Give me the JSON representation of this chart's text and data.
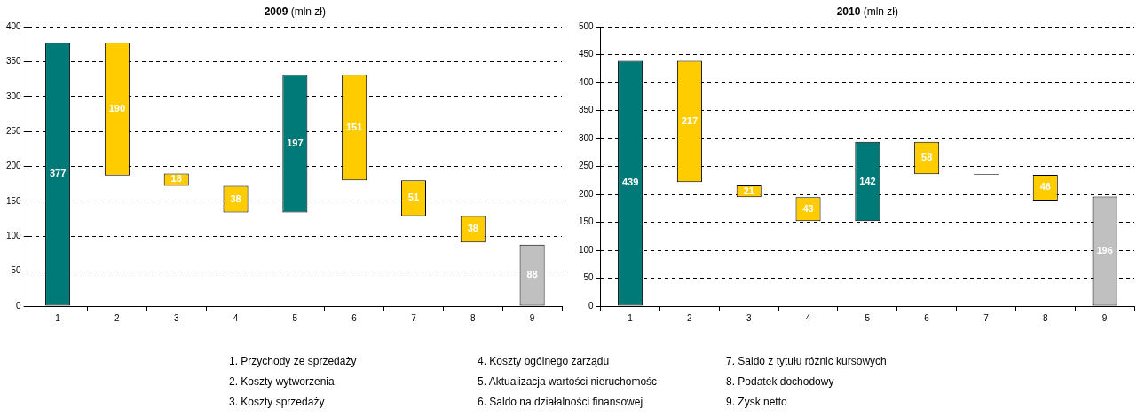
{
  "chart_data": [
    {
      "type": "bar",
      "title": "2009 (mln zł)",
      "categories": [
        "1",
        "2",
        "3",
        "4",
        "5",
        "6",
        "7",
        "8",
        "9"
      ],
      "values": [
        377,
        190,
        18,
        38,
        197,
        151,
        51,
        38,
        88
      ],
      "base": [
        0,
        187,
        172,
        134,
        134,
        180,
        129,
        91,
        0
      ],
      "colors": [
        "#007a78",
        "#ffcc00",
        "#ffcc00",
        "#ffcc00",
        "#007a78",
        "#ffcc00",
        "#ffcc00",
        "#ffcc00",
        "#c0c0c0"
      ],
      "ylim": [
        0,
        400
      ],
      "yticks": [
        0,
        50,
        100,
        150,
        200,
        250,
        300,
        350,
        400
      ],
      "grid": "y",
      "data_labels": true
    },
    {
      "type": "bar",
      "title": "2010 (mln zł)",
      "categories": [
        "1",
        "2",
        "3",
        "4",
        "5",
        "6",
        "7",
        "8",
        "9"
      ],
      "values": [
        439,
        217,
        21,
        43,
        142,
        58,
        1,
        46,
        196
      ],
      "base": [
        0,
        222,
        195,
        152,
        152,
        236,
        235,
        189,
        0
      ],
      "colors": [
        "#007a78",
        "#ffcc00",
        "#ffcc00",
        "#ffcc00",
        "#007a78",
        "#ffcc00",
        "#000000",
        "#ffcc00",
        "#c0c0c0"
      ],
      "value_labels": [
        "439",
        "217",
        "21",
        "43",
        "142",
        "58",
        null,
        "46",
        "196"
      ],
      "ylim": [
        0,
        500
      ],
      "yticks": [
        0,
        50,
        100,
        150,
        200,
        250,
        300,
        350,
        400,
        450,
        500
      ],
      "grid": "y"
    },
    {
      "type": "other",
      "annotations": [
        "1. Przychody ze sprzedaży",
        "2. Koszty wytworzenia",
        "3. Koszty sprzedaży",
        "4. Koszty ogólnego zarządu",
        "5. Aktualizacja wartości nieruchomośc",
        "6. Saldo na działalności finansowej",
        "7. Saldo z tytułu różnic kursowych",
        "8. Podatek dochodowy",
        "9. Zysk netto"
      ]
    }
  ]
}
